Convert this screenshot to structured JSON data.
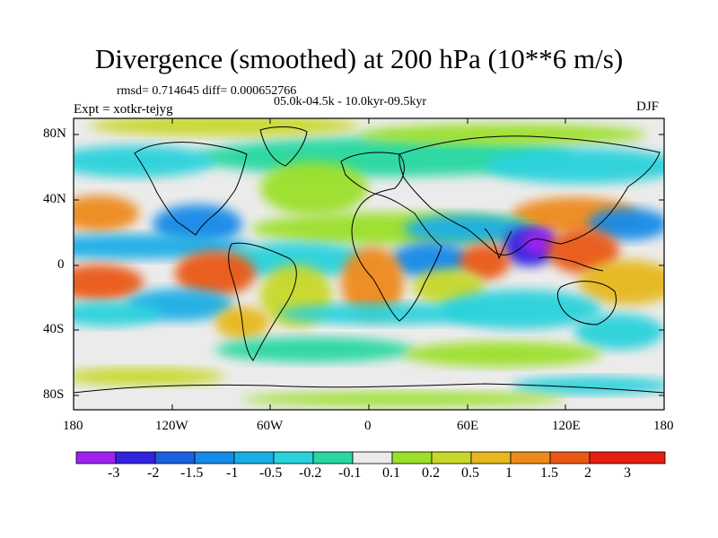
{
  "title": "Divergence (smoothed) at 200 hPa (10**6 m/s)",
  "stats": "rmsd= 0.714645 diff= 0.000652766",
  "period": "05.0k-04.5k - 10.0kyr-09.5kyr",
  "experiment": "Expt = xotkr-tejyg",
  "season": "DJF",
  "lat_labels": [
    "80N",
    "40N",
    "0",
    "40S",
    "80S"
  ],
  "lon_labels": [
    "180",
    "120W",
    "60W",
    "0",
    "60E",
    "120E",
    "180"
  ],
  "colorbar": {
    "labels": [
      "-3",
      "-2",
      "-1.5",
      "-1",
      "-0.5",
      "-0.2",
      "-0.1",
      "0.1",
      "0.2",
      "0.5",
      "1",
      "1.5",
      "2",
      "3"
    ],
    "colors": [
      "#a020f0",
      "#3223e0",
      "#1c60e0",
      "#158ae8",
      "#1aaee6",
      "#2ad2dc",
      "#28d8a0",
      "#ebebeb",
      "#9be02b",
      "#c8d82a",
      "#e6b81e",
      "#ee8a1c",
      "#ea5816",
      "#e61e10"
    ]
  },
  "map": {
    "ocean_color": "#ebebeb",
    "coast_color": "#000000"
  }
}
